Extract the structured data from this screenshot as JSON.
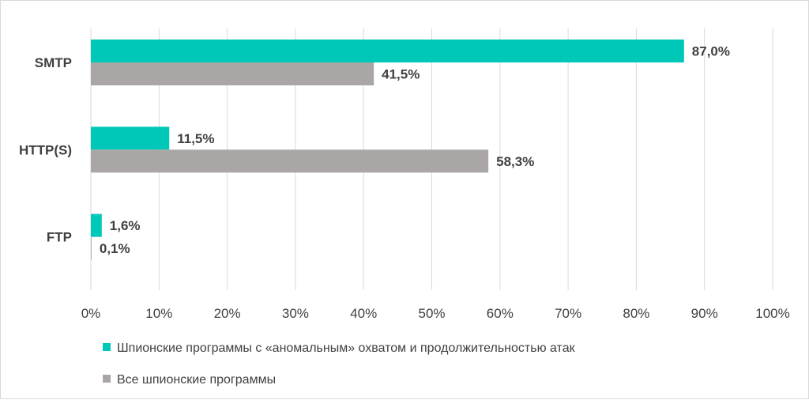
{
  "chart_data": {
    "type": "bar",
    "orientation": "horizontal",
    "categories": [
      "SMTP",
      "HTTP(S)",
      "FTP"
    ],
    "series": [
      {
        "name": "Шпионские программы  с «аномальным»  охватом и продолжительностью атак",
        "color": "#00c8b8",
        "values": [
          87.0,
          11.5,
          1.6
        ],
        "labels": [
          "87,0%",
          "11,5%",
          "1,6%"
        ]
      },
      {
        "name": "Все шпионские программы",
        "color": "#aaa6a6",
        "values": [
          41.5,
          58.3,
          0.1
        ],
        "labels": [
          "41,5%",
          "58,3%",
          "0,1%"
        ]
      }
    ],
    "xlim": [
      0,
      100
    ],
    "x_ticks": [
      0,
      10,
      20,
      30,
      40,
      50,
      60,
      70,
      80,
      90,
      100
    ],
    "x_tick_labels": [
      "0%",
      "10%",
      "20%",
      "30%",
      "40%",
      "50%",
      "60%",
      "70%",
      "80%",
      "90%",
      "100%"
    ],
    "grid": "vertical",
    "legend_position": "bottom"
  }
}
